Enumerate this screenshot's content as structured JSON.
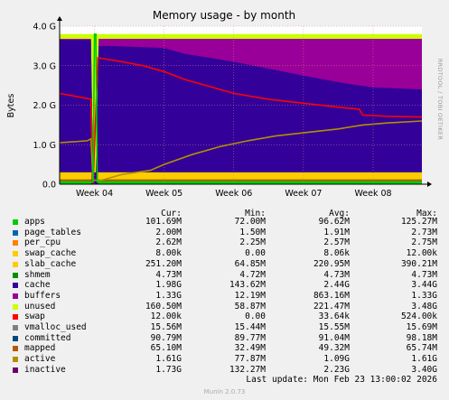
{
  "chart_data": {
    "type": "area",
    "title": "Memory usage - by month",
    "ylabel": "Bytes",
    "ylim": [
      0,
      4.0
    ],
    "y_unit": "G",
    "y_ticks": [
      "0.0",
      "1.0 G",
      "2.0 G",
      "3.0 G",
      "4.0 G"
    ],
    "x_ticks": [
      "Week 04",
      "Week 05",
      "Week 06",
      "Week 07",
      "Week 08"
    ],
    "side_label": "RRDTOOL / TOBI OETIKER",
    "grid": true,
    "x_range_weeks": [
      3.5,
      8.7
    ],
    "stacked_series": [
      {
        "name": "apps",
        "color": "#00cc00",
        "points": [
          [
            3.5,
            0.1
          ],
          [
            3.95,
            0.1
          ],
          [
            4.02,
            0.1
          ],
          [
            4.1,
            0.1
          ],
          [
            4.2,
            0.1
          ],
          [
            8.7,
            0.1
          ]
        ]
      },
      {
        "name": "page_tables",
        "color": "#0066b3",
        "points": [
          [
            3.5,
            0.002
          ],
          [
            8.7,
            0.002
          ]
        ]
      },
      {
        "name": "per_cpu",
        "color": "#ff8000",
        "points": [
          [
            3.5,
            0.003
          ],
          [
            8.7,
            0.003
          ]
        ]
      },
      {
        "name": "swap_cache",
        "color": "#ffcc00",
        "points": [
          [
            3.5,
            1e-05
          ],
          [
            8.7,
            1e-05
          ]
        ]
      },
      {
        "name": "slab_cache",
        "color": "#330099",
        "points": [
          [
            3.5,
            0.2
          ],
          [
            3.95,
            0.2
          ],
          [
            4.02,
            0.1
          ],
          [
            4.1,
            0.2
          ],
          [
            4.2,
            0.21
          ],
          [
            6.0,
            0.21
          ],
          [
            7.0,
            0.21
          ],
          [
            8.7,
            0.21
          ]
        ]
      },
      {
        "name": "shmem",
        "color": "#990099",
        "points": [
          [
            3.5,
            0.005
          ],
          [
            8.7,
            0.005
          ]
        ]
      },
      {
        "name": "cache",
        "color": "#ccff00",
        "points": [
          [
            3.5,
            0.0
          ],
          [
            3.98,
            0.0
          ],
          [
            4.02,
            0.0
          ],
          [
            8.7,
            0.0
          ]
        ]
      },
      {
        "name": "buffers",
        "color": "#ff0000",
        "points": [
          [
            3.5,
            0.0
          ],
          [
            8.7,
            0.0
          ]
        ]
      },
      {
        "name": "unused",
        "color": "#808080",
        "points": [
          [
            3.5,
            0.0
          ],
          [
            8.7,
            0.0
          ]
        ]
      },
      {
        "name": "swap",
        "color": "#008f00",
        "points": [
          [
            3.5,
            0.0
          ],
          [
            8.7,
            0.0
          ]
        ]
      },
      {
        "name": "vmalloc_used",
        "color": "#00487d",
        "points": [
          [
            3.5,
            0.015
          ],
          [
            8.7,
            0.015
          ]
        ]
      },
      {
        "name": "committed",
        "color": "#b35a00",
        "points": [
          [
            3.5,
            0.09
          ],
          [
            8.7,
            0.09
          ]
        ]
      },
      {
        "name": "mapped",
        "color": "#b38f00",
        "points": [
          [
            3.5,
            0.065
          ],
          [
            8.7,
            0.065
          ]
        ]
      },
      {
        "name": "active",
        "color": "#6b006b",
        "points": [
          [
            3.5,
            1.1
          ],
          [
            8.7,
            1.6
          ]
        ]
      },
      {
        "name": "inactive",
        "color": "#8fb300",
        "points": [
          [
            3.5,
            1.7
          ],
          [
            8.7,
            1.7
          ]
        ]
      }
    ],
    "area_series": [
      {
        "name": "cache",
        "color": "#330099",
        "points": [
          [
            3.5,
            3.65
          ],
          [
            3.95,
            3.65
          ],
          [
            3.98,
            0.3
          ],
          [
            4.02,
            0.3
          ],
          [
            4.06,
            3.5
          ],
          [
            4.2,
            3.5
          ],
          [
            5.0,
            3.45
          ],
          [
            5.3,
            3.3
          ],
          [
            6.0,
            3.1
          ],
          [
            7.0,
            2.75
          ],
          [
            7.6,
            2.55
          ],
          [
            8.0,
            2.45
          ],
          [
            8.7,
            2.4
          ]
        ]
      },
      {
        "name": "buffers",
        "color": "#990099",
        "points": [
          [
            3.5,
            3.68
          ],
          [
            3.95,
            3.68
          ],
          [
            3.98,
            0.3
          ],
          [
            4.02,
            0.3
          ],
          [
            4.06,
            3.68
          ],
          [
            8.7,
            3.68
          ]
        ]
      },
      {
        "name": "unused",
        "color": "#ccff00",
        "points": [
          [
            3.5,
            3.8
          ],
          [
            3.95,
            3.8
          ],
          [
            3.98,
            3.8
          ],
          [
            4.02,
            3.8
          ],
          [
            4.06,
            3.8
          ],
          [
            8.7,
            3.8
          ]
        ]
      }
    ],
    "line_series": [
      {
        "name": "swap",
        "color": "#ff0000",
        "points": [
          [
            3.5,
            2.3
          ],
          [
            3.8,
            2.2
          ],
          [
            3.95,
            2.15
          ],
          [
            3.98,
            0.0
          ],
          [
            4.05,
            3.2
          ],
          [
            4.4,
            3.1
          ],
          [
            4.7,
            3.0
          ],
          [
            5.0,
            2.85
          ],
          [
            5.3,
            2.65
          ],
          [
            5.6,
            2.5
          ],
          [
            6.0,
            2.3
          ],
          [
            6.5,
            2.15
          ],
          [
            7.0,
            2.05
          ],
          [
            7.5,
            1.95
          ],
          [
            7.8,
            1.9
          ],
          [
            7.85,
            1.75
          ],
          [
            8.2,
            1.72
          ],
          [
            8.7,
            1.7
          ]
        ]
      },
      {
        "name": "active",
        "color": "#b38f00",
        "points": [
          [
            3.5,
            1.05
          ],
          [
            3.9,
            1.1
          ],
          [
            3.95,
            1.15
          ],
          [
            3.98,
            0.1
          ],
          [
            4.1,
            0.1
          ],
          [
            4.4,
            0.25
          ],
          [
            4.8,
            0.35
          ],
          [
            5.0,
            0.5
          ],
          [
            5.4,
            0.75
          ],
          [
            5.8,
            0.95
          ],
          [
            6.2,
            1.1
          ],
          [
            6.6,
            1.22
          ],
          [
            7.0,
            1.3
          ],
          [
            7.5,
            1.4
          ],
          [
            7.85,
            1.5
          ],
          [
            8.2,
            1.55
          ],
          [
            8.7,
            1.6
          ]
        ]
      },
      {
        "name": "apps",
        "color": "#00cc00",
        "points": [
          [
            3.5,
            0.06
          ],
          [
            3.98,
            0.06
          ],
          [
            4.0,
            3.8
          ],
          [
            4.02,
            3.8
          ],
          [
            4.04,
            0.06
          ],
          [
            8.7,
            0.06
          ]
        ]
      }
    ],
    "legend": {
      "headers": [
        "Cur:",
        "Min:",
        "Avg:",
        "Max:"
      ],
      "rows": [
        {
          "name": "apps",
          "color": "#00cc00",
          "cur": "101.69M",
          "min": "72.00M",
          "avg": "96.62M",
          "max": "125.27M"
        },
        {
          "name": "page_tables",
          "color": "#0066b3",
          "cur": "2.00M",
          "min": "1.50M",
          "avg": "1.91M",
          "max": "2.73M"
        },
        {
          "name": "per_cpu",
          "color": "#ff8000",
          "cur": "2.62M",
          "min": "2.25M",
          "avg": "2.57M",
          "max": "2.75M"
        },
        {
          "name": "swap_cache",
          "color": "#ffcc00",
          "cur": "8.00k",
          "min": "0.00",
          "avg": "8.06k",
          "max": "12.00k"
        },
        {
          "name": "slab_cache",
          "color": "#ffcc00",
          "cur": "251.20M",
          "min": "64.85M",
          "avg": "220.95M",
          "max": "390.21M"
        },
        {
          "name": "shmem",
          "color": "#008f00",
          "cur": "4.73M",
          "min": "4.72M",
          "avg": "4.73M",
          "max": "4.73M"
        },
        {
          "name": "cache",
          "color": "#330099",
          "cur": "1.98G",
          "min": "143.62M",
          "avg": "2.44G",
          "max": "3.44G"
        },
        {
          "name": "buffers",
          "color": "#990099",
          "cur": "1.33G",
          "min": "12.19M",
          "avg": "863.16M",
          "max": "1.33G"
        },
        {
          "name": "unused",
          "color": "#ccff00",
          "cur": "160.50M",
          "min": "58.87M",
          "avg": "221.47M",
          "max": "3.48G"
        },
        {
          "name": "swap",
          "color": "#ff0000",
          "cur": "12.00k",
          "min": "0.00",
          "avg": "33.64k",
          "max": "524.00k"
        },
        {
          "name": "vmalloc_used",
          "color": "#808080",
          "cur": "15.56M",
          "min": "15.44M",
          "avg": "15.55M",
          "max": "15.69M"
        },
        {
          "name": "committed",
          "color": "#00487d",
          "cur": "90.79M",
          "min": "89.77M",
          "avg": "91.04M",
          "max": "98.18M"
        },
        {
          "name": "mapped",
          "color": "#b35a00",
          "cur": "65.10M",
          "min": "32.49M",
          "avg": "49.32M",
          "max": "65.74M"
        },
        {
          "name": "active",
          "color": "#b38f00",
          "cur": "1.61G",
          "min": "77.87M",
          "avg": "1.09G",
          "max": "1.61G"
        },
        {
          "name": "inactive",
          "color": "#6b006b",
          "cur": "1.73G",
          "min": "132.27M",
          "avg": "2.23G",
          "max": "3.40G"
        }
      ]
    }
  },
  "footer": {
    "last_update": "Last update: Mon Feb 23 13:00:02 2026",
    "generator": "Munin 2.0.73"
  }
}
